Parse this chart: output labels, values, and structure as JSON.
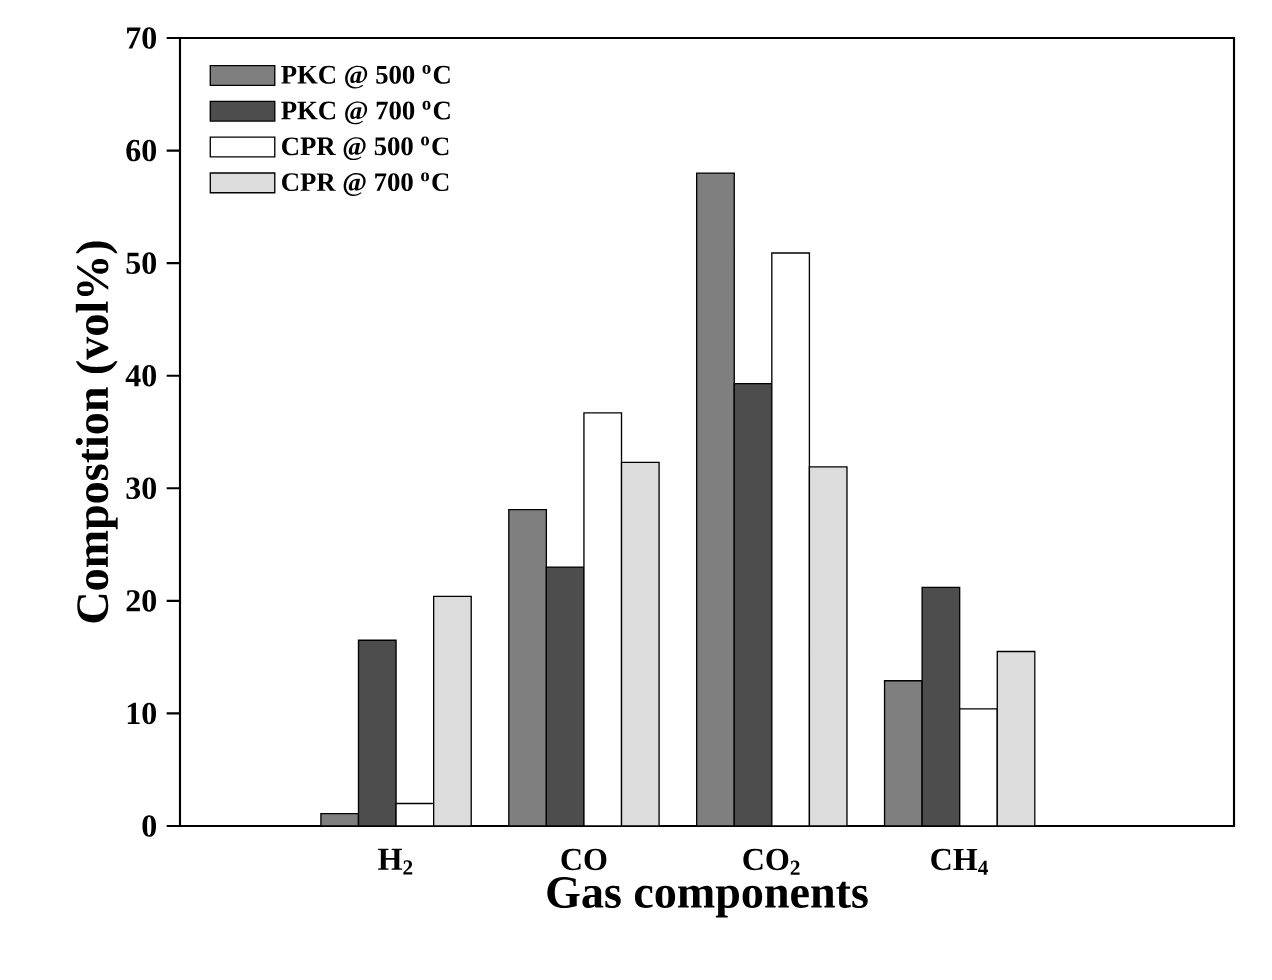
{
  "chart_data": {
    "type": "bar",
    "xlabel": "Gas components",
    "ylabel": "Compostion (vol%)",
    "categories": [
      "H$_{2}$",
      "CO",
      "CO$_{2}$",
      "CH$_{4}$"
    ],
    "series": [
      {
        "name": "PKC @ 500 $^{o}$C",
        "color": "#7f7f7f",
        "values": [
          1.1,
          28.1,
          58,
          12.9
        ]
      },
      {
        "name": "PKC @ 700 $^{o}$C",
        "color": "#4d4d4d",
        "values": [
          16.5,
          23,
          39.3,
          21.2
        ]
      },
      {
        "name": "CPR @ 500 $^{o}$C",
        "color": "#ffffff",
        "values": [
          2,
          36.7,
          50.9,
          10.4
        ]
      },
      {
        "name": "CPR @ 700 $^{o}$C",
        "color": "#dcdcdc",
        "values": [
          20.4,
          32.3,
          31.9,
          15.5
        ]
      }
    ],
    "ylim": [
      0,
      70
    ],
    "yticks": [
      0,
      10,
      20,
      30,
      40,
      50,
      60,
      70
    ],
    "legend": "top left",
    "grid": false
  }
}
